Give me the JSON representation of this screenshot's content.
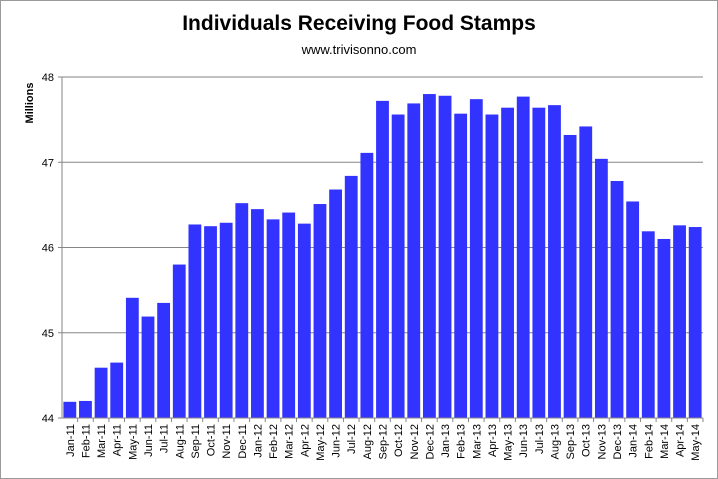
{
  "chart_data": {
    "type": "bar",
    "title": "Individuals Receiving Food Stamps",
    "subtitle": "www.trivisonno.com",
    "ylabel": "Millions",
    "xlabel": "",
    "ylim": [
      44,
      48
    ],
    "yticks": [
      44,
      45,
      46,
      47,
      48
    ],
    "grid": true,
    "bar_color": "#3333ff",
    "categories": [
      "Jan-11",
      "Feb-11",
      "Mar-11",
      "Apr-11",
      "May-11",
      "Jun-11",
      "Jul-11",
      "Aug-11",
      "Sep-11",
      "Oct-11",
      "Nov-11",
      "Dec-11",
      "Jan-12",
      "Feb-12",
      "Mar-12",
      "Apr-12",
      "May-12",
      "Jun-12",
      "Jul-12",
      "Aug-12",
      "Sep-12",
      "Oct-12",
      "Nov-12",
      "Dec-12",
      "Jan-13",
      "Feb-13",
      "Mar-13",
      "Apr-13",
      "May-13",
      "Jun-13",
      "Jul-13",
      "Aug-13",
      "Sep-13",
      "Oct-13",
      "Nov-13",
      "Dec-13",
      "Jan-14",
      "Feb-14",
      "Mar-14",
      "Apr-14",
      "May-14"
    ],
    "values": [
      44.19,
      44.2,
      44.59,
      44.65,
      45.41,
      45.19,
      45.35,
      45.8,
      46.27,
      46.25,
      46.29,
      46.52,
      46.45,
      46.33,
      46.41,
      46.28,
      46.51,
      46.68,
      46.84,
      47.11,
      47.72,
      47.56,
      47.69,
      47.8,
      47.78,
      47.57,
      47.74,
      47.56,
      47.64,
      47.77,
      47.64,
      47.67,
      47.32,
      47.42,
      47.04,
      46.78,
      46.54,
      46.19,
      46.1,
      46.26,
      46.24
    ]
  }
}
